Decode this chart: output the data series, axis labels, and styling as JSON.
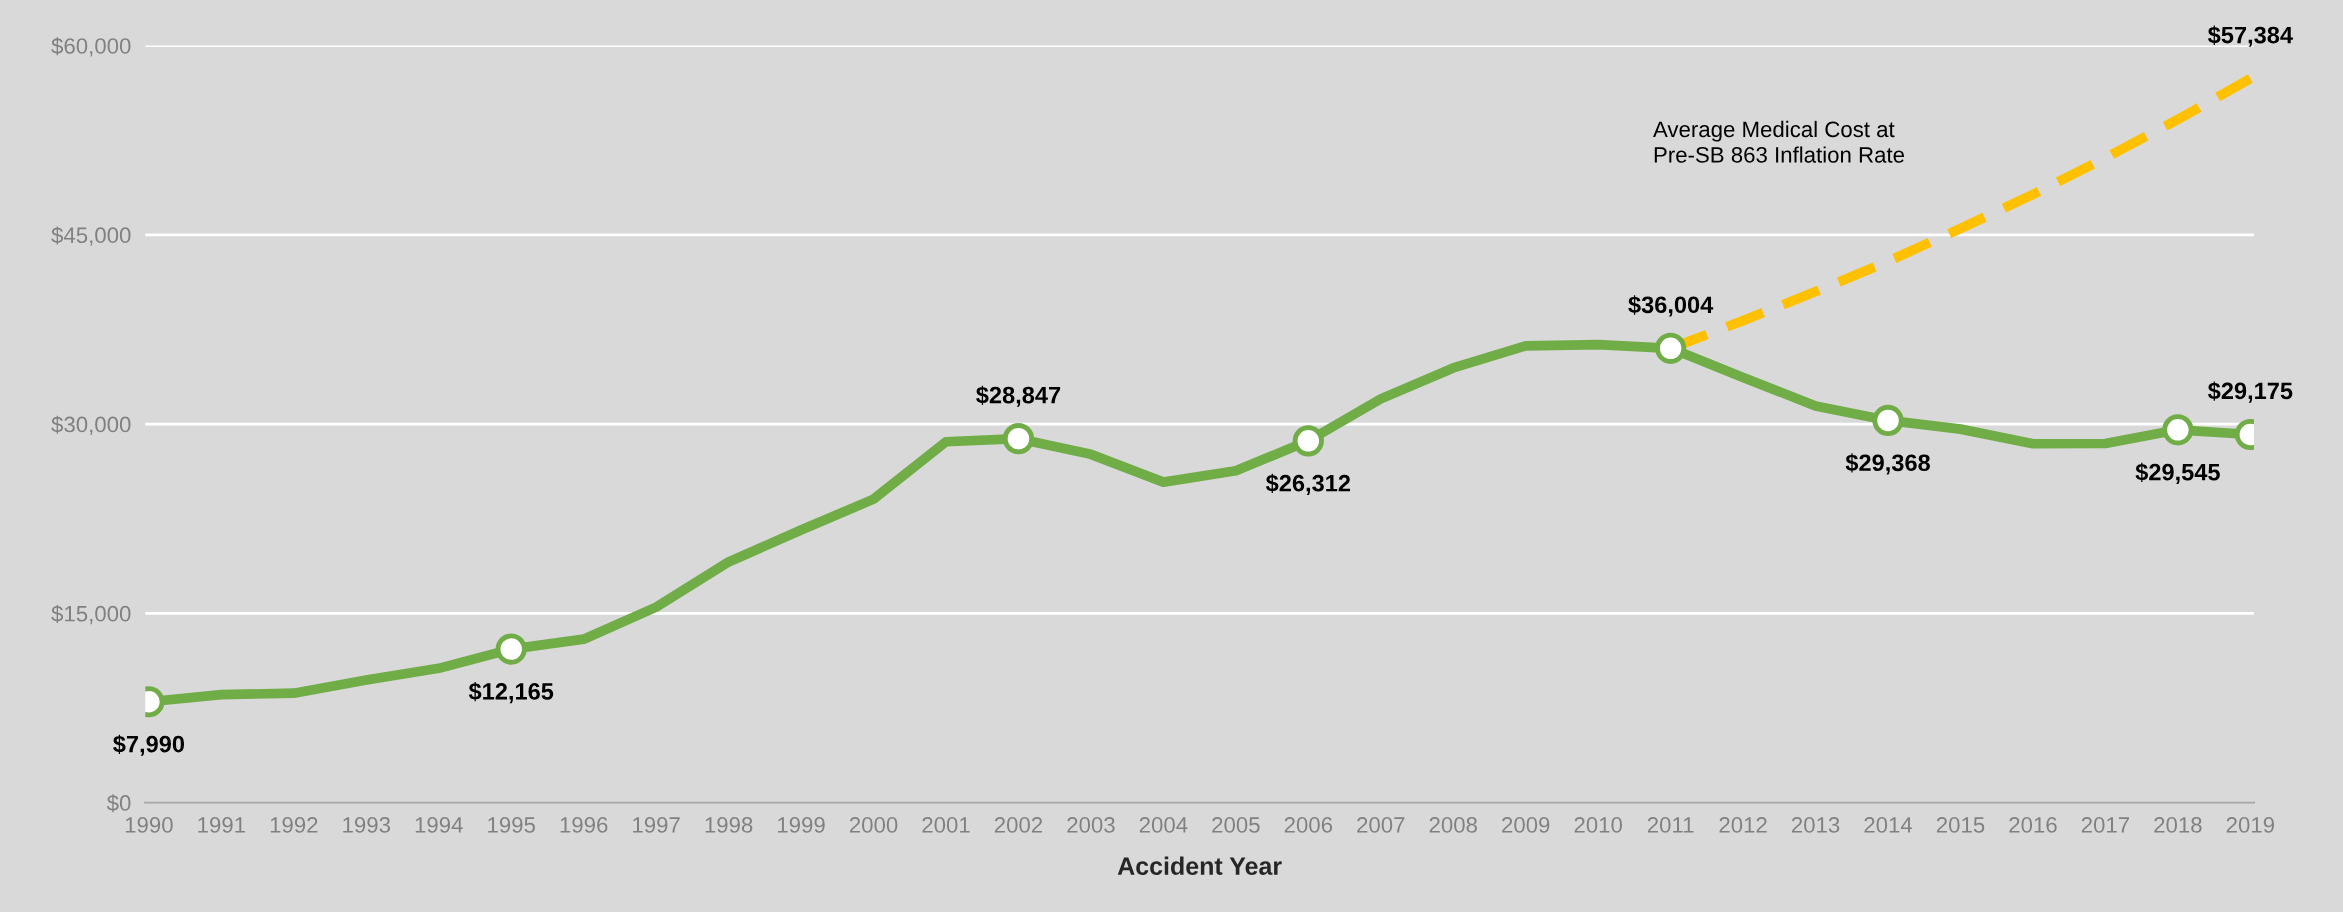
{
  "chart_data": {
    "type": "line",
    "categories": [
      "1990",
      "1991",
      "1992",
      "1993",
      "1994",
      "1995",
      "1996",
      "1997",
      "1998",
      "1999",
      "2000",
      "2001",
      "2002",
      "2003",
      "2004",
      "2005",
      "2006",
      "2007",
      "2008",
      "2009",
      "2010",
      "2011",
      "2012",
      "2013",
      "2014",
      "2015",
      "2016",
      "2017",
      "2018",
      "2019"
    ],
    "series": [
      {
        "color": "#70ad47",
        "line_style": "solid",
        "values": [
          7990,
          8550,
          8670,
          9710,
          10640,
          12165,
          12950,
          15490,
          19070,
          21600,
          24050,
          28600,
          28847,
          27600,
          25400,
          26300,
          28670,
          32000,
          34450,
          36200,
          36300,
          36004,
          33700,
          31440,
          30290,
          29600,
          28440,
          28460,
          29545,
          29175
        ]
      },
      {
        "type": "scatter",
        "color": "#70ad47",
        "marker": "circle",
        "values": [
          7990,
          null,
          null,
          null,
          null,
          12165,
          null,
          null,
          null,
          null,
          null,
          null,
          28847,
          null,
          null,
          null,
          28670,
          null,
          null,
          null,
          null,
          36004,
          null,
          null,
          30290,
          null,
          null,
          null,
          29545,
          29175
        ],
        "value_labels": [
          "$7,990",
          null,
          null,
          null,
          null,
          "$12,165",
          null,
          null,
          null,
          null,
          null,
          null,
          "$28,847",
          null,
          null,
          null,
          null,
          null,
          null,
          null,
          null,
          "$36,004",
          null,
          null,
          null,
          null,
          null,
          null,
          "$29,545",
          "$29,175"
        ]
      },
      {
        "name": "Average Medical Cost at\nPre-SB 863 Inflation Rate",
        "color": "#ffc000",
        "line_style": "dashed",
        "marker": "none",
        "values": [
          null,
          null,
          null,
          null,
          null,
          null,
          null,
          null,
          null,
          null,
          null,
          null,
          null,
          null,
          null,
          null,
          null,
          null,
          null,
          null,
          null,
          36000,
          38200,
          40500,
          42900,
          45500,
          48200,
          51100,
          54150,
          57384
        ],
        "value_labels": [
          null,
          null,
          null,
          null,
          null,
          null,
          null,
          null,
          null,
          null,
          null,
          null,
          null,
          null,
          null,
          null,
          null,
          null,
          null,
          null,
          null,
          null,
          null,
          null,
          null,
          null,
          null,
          null,
          null,
          "$57,384"
        ]
      }
    ],
    "annotations": [
      {
        "text": "$26,312",
        "x": "2006",
        "y": 28670
      },
      {
        "text": "$29,368",
        "x": "2014",
        "y": 30290
      }
    ],
    "xlabel": "Accident Year",
    "ylim": [
      0,
      60000
    ],
    "yticks": [
      {
        "value": 0,
        "label": "$0"
      },
      {
        "value": 15000,
        "label": "$15,000"
      },
      {
        "value": 30000,
        "label": "$30,000"
      },
      {
        "value": 45000,
        "label": "$45,000"
      },
      {
        "value": 60000,
        "label": "$60,000"
      }
    ],
    "grid": "y",
    "legend": false
  }
}
